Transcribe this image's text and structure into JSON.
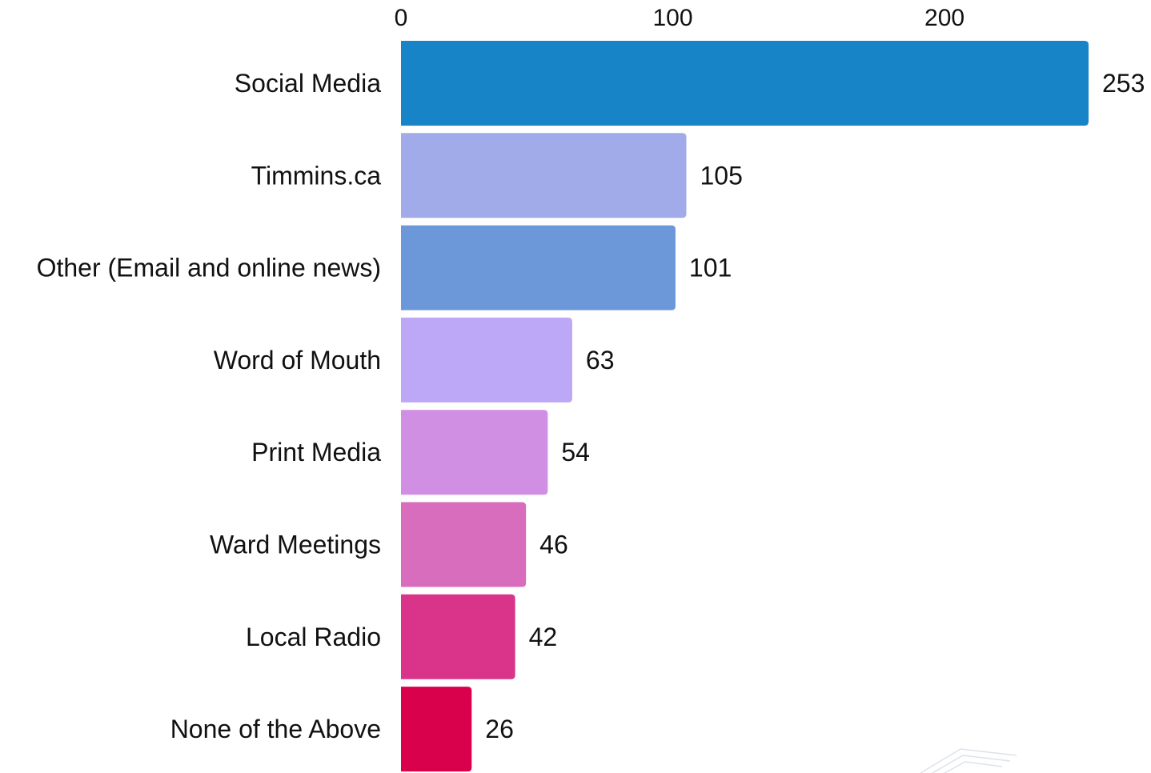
{
  "chart_data": {
    "type": "bar",
    "orientation": "horizontal",
    "categories": [
      "Social Media",
      "Timmins.ca",
      "Other (Email and online news)",
      "Word of Mouth",
      "Print Media",
      "Ward Meetings",
      "Local Radio",
      "None of the Above"
    ],
    "values": [
      253,
      105,
      101,
      63,
      54,
      46,
      42,
      26
    ],
    "colors": [
      "#1884c8",
      "#a1abea",
      "#6c98da",
      "#bca8f6",
      "#d08fe3",
      "#d86cbd",
      "#d93489",
      "#d9004c"
    ],
    "xticks": [
      0,
      100,
      200
    ],
    "xlim": [
      0,
      253
    ],
    "axis_position": "top",
    "grid": false,
    "legend": "none",
    "title": "",
    "xlabel": "",
    "ylabel": ""
  }
}
